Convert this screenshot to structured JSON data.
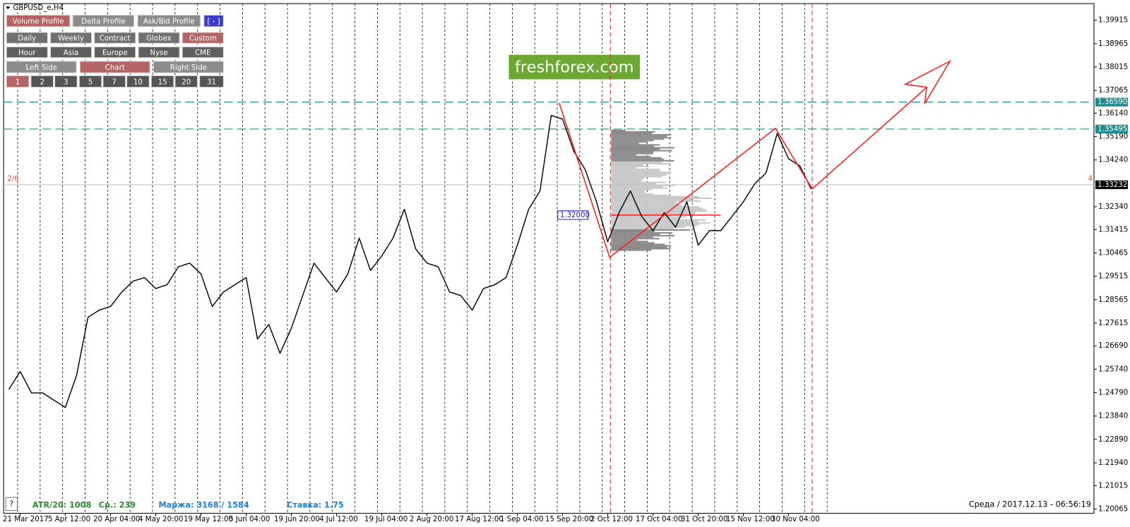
{
  "window": {
    "title": "GBPUSD_e,H4"
  },
  "toolbar": {
    "rows": [
      [
        {
          "label": "Volume Profile",
          "color": "#b46464"
        },
        {
          "label": "Delta Profile",
          "color": "#8c8c8c"
        },
        {
          "label": "Ask/Bid Profile",
          "color": "#8c8c8c"
        },
        {
          "label": "[ - ]",
          "color": "#3c3cc8"
        }
      ],
      [
        {
          "label": "Daily",
          "color": "#707070"
        },
        {
          "label": "Weekly",
          "color": "#707070"
        },
        {
          "label": "Contract",
          "color": "#707070"
        },
        {
          "label": "Globex",
          "color": "#707070"
        },
        {
          "label": "Custom",
          "color": "#b46464"
        }
      ],
      [
        {
          "label": "Hour",
          "color": "#606060"
        },
        {
          "label": "Asia",
          "color": "#606060"
        },
        {
          "label": "Europe",
          "color": "#606060"
        },
        {
          "label": "Nyse",
          "color": "#606060"
        },
        {
          "label": "CME",
          "color": "#606060"
        }
      ],
      [
        {
          "label": "Left Side",
          "color": "#8c8c8c"
        },
        {
          "label": "Chart",
          "color": "#b46464"
        },
        {
          "label": "Right Side",
          "color": "#8c8c8c"
        }
      ],
      [
        {
          "label": "1",
          "color": "#b46464"
        },
        {
          "label": "2",
          "color": "#555555"
        },
        {
          "label": "3",
          "color": "#555555"
        },
        {
          "label": "5",
          "color": "#555555"
        },
        {
          "label": "7",
          "color": "#555555"
        },
        {
          "label": "10",
          "color": "#555555"
        },
        {
          "label": "15",
          "color": "#555555"
        },
        {
          "label": "20",
          "color": "#555555"
        },
        {
          "label": "31",
          "color": "#555555"
        }
      ]
    ]
  },
  "watermark": "freshforex.com",
  "chart_data": {
    "type": "line",
    "color": "#000000",
    "categories": [
      null,
      "21 Mar 2017",
      null,
      null,
      null,
      "5 Apr 12:00",
      null,
      null,
      null,
      "20 Apr 04:00",
      null,
      null,
      null,
      "4 May 20:00",
      null,
      null,
      null,
      "19 May 12:00",
      null,
      null,
      null,
      "5 Jun 04:00",
      null,
      null,
      null,
      "19 Jun 20:00",
      null,
      null,
      null,
      "4 Jul 12:00",
      null,
      null,
      null,
      "19 Jul 04:00",
      null,
      null,
      null,
      "2 Aug 20:00",
      null,
      null,
      null,
      "17 Aug 12:00",
      null,
      null,
      null,
      "1 Sep 04:00",
      null,
      null,
      null,
      "15 Sep 20:00",
      null,
      null,
      null,
      "2 Oct 12:00",
      null,
      null,
      null,
      "17 Oct 04:00",
      null,
      null,
      null,
      "31 Oct 20:00",
      null,
      null,
      null,
      "15 Nov 12:00",
      null,
      null,
      null,
      "30 Nov 04:00",
      null,
      null
    ],
    "values": [
      1.2492,
      1.2565,
      1.2478,
      1.2478,
      1.2448,
      1.2419,
      1.2551,
      1.2785,
      1.2814,
      1.2829,
      1.2888,
      1.2932,
      1.2946,
      1.2902,
      1.2917,
      1.299,
      1.3005,
      1.2961,
      1.2829,
      1.2888,
      1.2917,
      1.2946,
      1.2697,
      1.2756,
      1.2639,
      1.2741,
      1.2873,
      1.3005,
      1.2946,
      1.2888,
      1.2961,
      1.3107,
      1.2975,
      1.3034,
      1.3107,
      1.3224,
      1.3063,
      1.3005,
      1.299,
      1.2888,
      1.2873,
      1.2814,
      1.2902,
      1.2917,
      1.2946,
      1.3078,
      1.3224,
      1.3298,
      1.3605,
      1.359,
      1.3459,
      1.3385,
      1.3254,
      1.3092,
      1.321,
      1.3298,
      1.3195,
      1.3137,
      1.321,
      1.3151,
      1.3254,
      1.3078,
      1.3137,
      1.3137,
      1.3195,
      1.3254,
      1.3327,
      1.3371,
      1.3532,
      1.3429,
      1.34,
      1.3306
    ],
    "ylim": [
      1.1989,
      1.4059
    ],
    "yticks": [
      1.39915,
      1.38965,
      1.38015,
      1.37065,
      {
        "value": 1.3614,
        "label": "1.36140"
      },
      {
        "value": 1.3519,
        "label": "1.35190"
      },
      {
        "value": 1.3424,
        "label": "1.34240"
      },
      {
        "value": 1.3234,
        "label": "1.32340"
      },
      1.31415,
      1.30465,
      1.29515,
      1.28565,
      1.27615,
      {
        "value": 1.2669,
        "label": "1.26690"
      },
      {
        "value": 1.2574,
        "label": "1.25740"
      },
      {
        "value": 1.2479,
        "label": "1.24790"
      },
      {
        "value": 1.2384,
        "label": "1.23840"
      },
      {
        "value": 1.2289,
        "label": "1.22890"
      },
      {
        "value": 1.2194,
        "label": "1.21940"
      },
      1.21015,
      1.20065
    ],
    "levels": [
      {
        "value": 1.3659,
        "label": "1.36590",
        "color": "#1f8c8c"
      },
      {
        "value": 1.35495,
        "label": "1.35495",
        "color": "#1f8c8c"
      }
    ],
    "current_price": {
      "value": 1.33232,
      "label": "1.33232"
    },
    "marker": {
      "value": 1.32,
      "label": "1.32000"
    },
    "left_label": "2/6",
    "right_label": "4"
  },
  "status_bar": {
    "help": "?",
    "atr": "ATR/20: 1008",
    "avg": "Ср.: 239",
    "margin": "Маржа: 3168 / 1584",
    "rate": "Ставка: 1.75",
    "datetime": "Среда  /  2017.12.13  -  06:56:19"
  }
}
